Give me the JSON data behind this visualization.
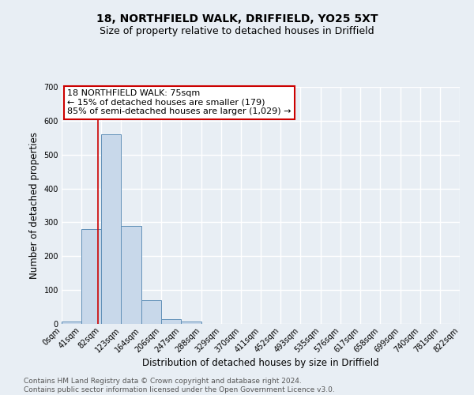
{
  "title_line1": "18, NORTHFIELD WALK, DRIFFIELD, YO25 5XT",
  "title_line2": "Size of property relative to detached houses in Driffield",
  "xlabel": "Distribution of detached houses by size in Driffield",
  "ylabel": "Number of detached properties",
  "bin_edges": [
    0,
    41,
    82,
    123,
    164,
    206,
    247,
    288,
    329,
    370,
    411,
    452,
    493,
    535,
    576,
    617,
    658,
    699,
    740,
    781,
    822
  ],
  "bin_labels": [
    "0sqm",
    "41sqm",
    "82sqm",
    "123sqm",
    "164sqm",
    "206sqm",
    "247sqm",
    "288sqm",
    "329sqm",
    "370sqm",
    "411sqm",
    "452sqm",
    "493sqm",
    "535sqm",
    "576sqm",
    "617sqm",
    "658sqm",
    "699sqm",
    "740sqm",
    "781sqm",
    "822sqm"
  ],
  "bar_heights": [
    8,
    280,
    560,
    290,
    70,
    14,
    6,
    0,
    0,
    0,
    0,
    0,
    0,
    0,
    0,
    0,
    0,
    0,
    0,
    0
  ],
  "bar_color": "#c8d8ea",
  "bar_edge_color": "#6090b8",
  "property_sqm": 75,
  "vline_color": "#cc0000",
  "annotation_text": "18 NORTHFIELD WALK: 75sqm\n← 15% of detached houses are smaller (179)\n85% of semi-detached houses are larger (1,029) →",
  "annotation_box_color": "#ffffff",
  "annotation_box_edge": "#cc0000",
  "ylim": [
    0,
    700
  ],
  "yticks": [
    0,
    100,
    200,
    300,
    400,
    500,
    600,
    700
  ],
  "footer_text": "Contains HM Land Registry data © Crown copyright and database right 2024.\nContains public sector information licensed under the Open Government Licence v3.0.",
  "bg_color": "#e8eef4",
  "plot_bg_color": "#e8eef4",
  "grid_color": "#ffffff",
  "title_fontsize": 10,
  "subtitle_fontsize": 9,
  "axis_label_fontsize": 8.5,
  "tick_fontsize": 7,
  "annotation_fontsize": 8,
  "footer_fontsize": 6.5
}
